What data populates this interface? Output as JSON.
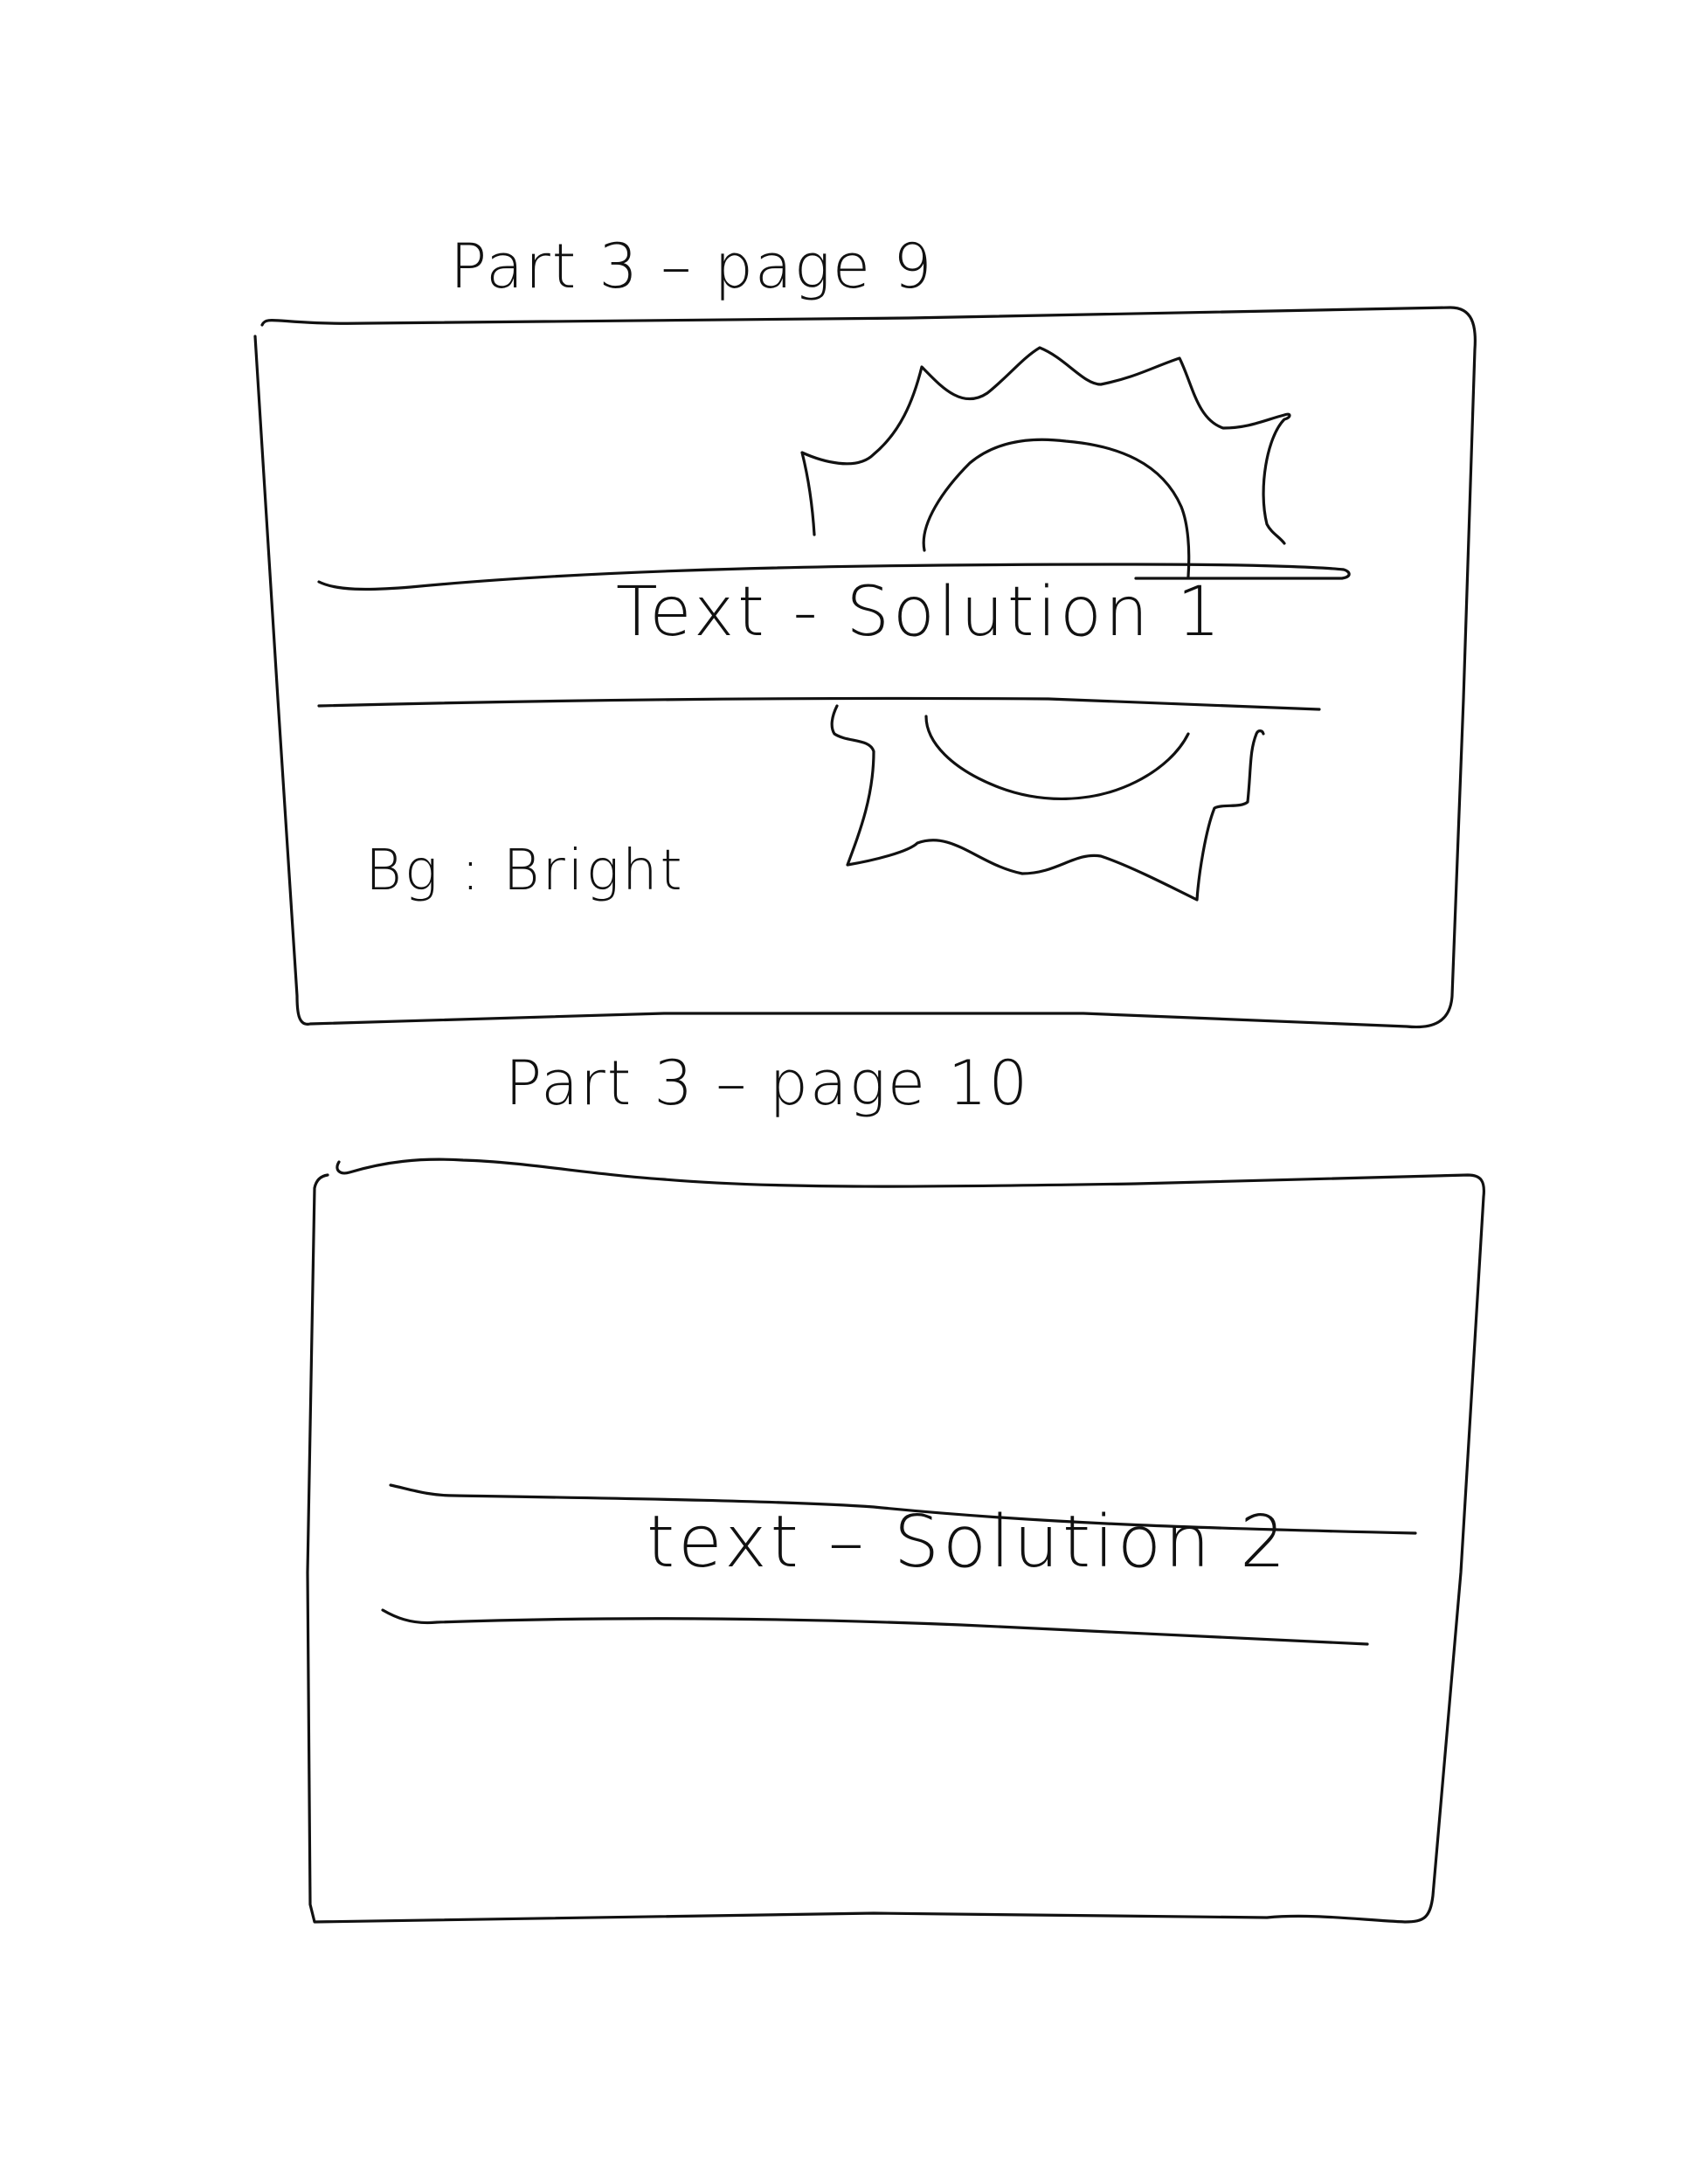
{
  "frames": [
    {
      "title": "Part 3 – page 9",
      "caption": "Text - Solution 1",
      "note": "Bg : Bright",
      "illustration_icon": "sun-icon"
    },
    {
      "title": "Part 3 – page 10",
      "caption": "text – Solution 2"
    }
  ],
  "colors": {
    "ink": "#111111",
    "paper": "#ffffff"
  }
}
